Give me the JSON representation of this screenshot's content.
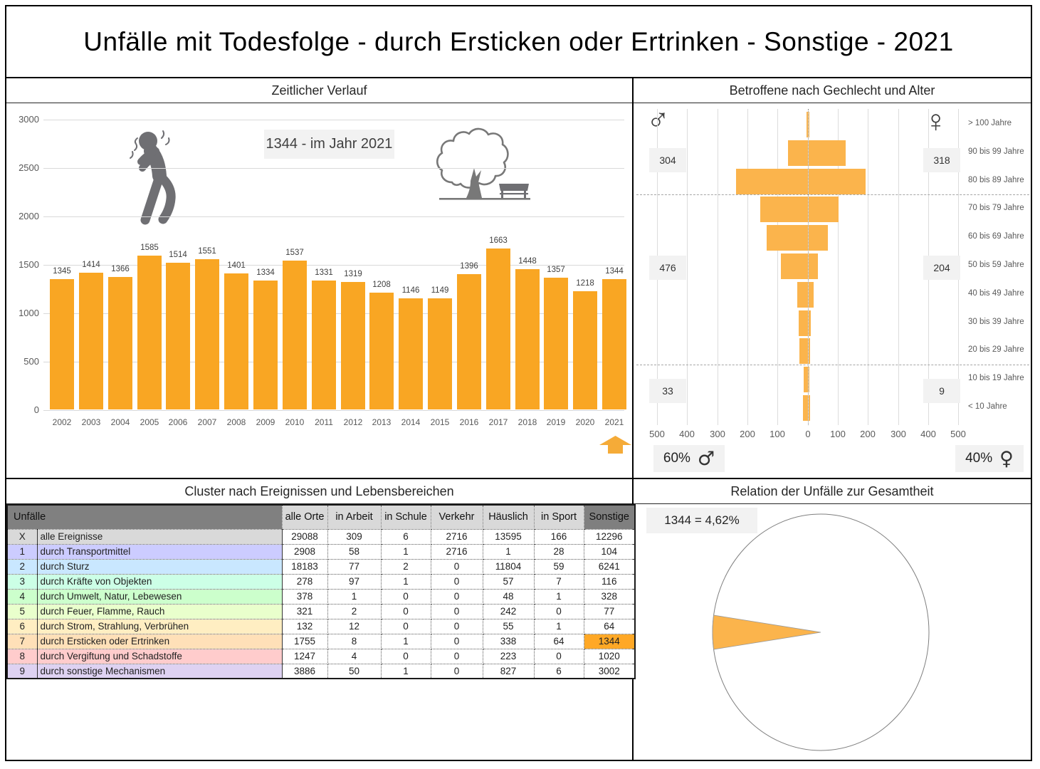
{
  "title": "Unfälle mit Todesfolge - durch Ersticken oder Ertrinken - Sonstige - 2021",
  "colors": {
    "bar_orange": "#F9A623",
    "pyramid_orange": "#FBB44C",
    "highlight_orange": "#FFA826",
    "arrow_orange": "#F5AB38",
    "comment_flag_red": "#C00000",
    "gridline_gray": "#D9D9D9",
    "box_gray": "#F2F2F2",
    "header_dark_gray": "#7F7F7F",
    "header_light_gray": "#D9D9D9"
  },
  "chart_data": [
    {
      "type": "bar",
      "title": "Zeitlicher Verlauf",
      "categories": [
        "2002",
        "2003",
        "2004",
        "2005",
        "2006",
        "2007",
        "2008",
        "2009",
        "2010",
        "2011",
        "2012",
        "2013",
        "2014",
        "2015",
        "2016",
        "2017",
        "2018",
        "2019",
        "2020",
        "2021"
      ],
      "values": [
        1345,
        1414,
        1366,
        1585,
        1514,
        1551,
        1401,
        1334,
        1537,
        1331,
        1319,
        1208,
        1146,
        1149,
        1396,
        1663,
        1448,
        1357,
        1218,
        1344
      ],
      "yticks": [
        3000,
        2500,
        2000,
        1500,
        1000,
        500,
        0
      ],
      "ylim": [
        0,
        3000
      ],
      "annotation": "1344 - im Jahr 2021",
      "highlighted_year": "2021"
    },
    {
      "type": "bar",
      "variant": "population_pyramid",
      "title": "Betroffene nach Gechlecht und Alter",
      "categories": [
        "> 100 Jahre",
        "90 bis 99 Jahre",
        "80 bis 89 Jahre",
        "70 bis 79 Jahre",
        "60 bis 69 Jahre",
        "50 bis 59 Jahre",
        "40 bis 49 Jahre",
        "30 bis 39 Jahre",
        "20 bis 29 Jahre",
        "10 bis 19 Jahre",
        "< 10 Jahre"
      ],
      "series": [
        {
          "name": "männlich",
          "symbol": "♂",
          "pct": "60%",
          "estimated": true,
          "values": [
            5,
            66,
            239,
            158,
            137,
            90,
            35,
            31,
            29,
            15,
            17
          ]
        },
        {
          "name": "weiblich",
          "symbol": "♀",
          "pct": "40%",
          "estimated": true,
          "values": [
            2,
            123,
            189,
            99,
            63,
            30,
            16,
            8,
            5,
            2,
            4
          ]
        }
      ],
      "band_totals": {
        "male": [
          "304",
          "476",
          "33"
        ],
        "female": [
          "318",
          "204",
          "9"
        ]
      },
      "axis_ticks": [
        "500",
        "400",
        "300",
        "200",
        "100",
        "0",
        "100",
        "200",
        "300",
        "400",
        "500"
      ],
      "xlim_each_side": 500
    },
    {
      "type": "table",
      "title": "Cluster nach Ereignissen und Lebensbereichen",
      "corner": "Unfälle",
      "columns": [
        "alle Orte",
        "in Arbeit",
        "in Schule",
        "Verkehr",
        "Häuslich",
        "in Sport",
        "Sonstige"
      ],
      "rows": [
        {
          "id": "X",
          "label": "alle Ereignisse",
          "values": [
            29088,
            309,
            6,
            2716,
            13595,
            166,
            12296
          ],
          "color": "#D9D9D9"
        },
        {
          "id": "1",
          "label": "durch Transportmittel",
          "values": [
            2908,
            58,
            1,
            2716,
            1,
            28,
            104
          ],
          "color": "#CCCCFF"
        },
        {
          "id": "2",
          "label": "durch Sturz",
          "values": [
            18183,
            77,
            2,
            0,
            11804,
            59,
            6241
          ],
          "color": "#C9E7FF"
        },
        {
          "id": "3",
          "label": "durch Kräfte von Objekten",
          "values": [
            278,
            97,
            1,
            0,
            57,
            7,
            116
          ],
          "color": "#CCFFE6"
        },
        {
          "id": "4",
          "label": "durch Umwelt, Natur, Lebewesen",
          "values": [
            378,
            1,
            0,
            0,
            48,
            1,
            328
          ],
          "color": "#CCFFCC"
        },
        {
          "id": "5",
          "label": "durch Feuer, Flamme, Rauch",
          "values": [
            321,
            2,
            0,
            0,
            242,
            0,
            77
          ],
          "color": "#E9FFCC"
        },
        {
          "id": "6",
          "label": "durch Strom, Strahlung, Verbrühen",
          "values": [
            132,
            12,
            0,
            0,
            55,
            1,
            64
          ],
          "color": "#FFEEC2"
        },
        {
          "id": "7",
          "label": "durch Ersticken oder Ertrinken",
          "values": [
            1755,
            8,
            1,
            0,
            338,
            64,
            1344
          ],
          "color": "#FFE0B8",
          "highlight_col": 6
        },
        {
          "id": "8",
          "label": "durch Vergiftung und Schadstoffe",
          "values": [
            1247,
            4,
            0,
            0,
            223,
            0,
            1020
          ],
          "color": "#FFCCCC"
        },
        {
          "id": "9",
          "label": "durch sonstige Mechanismen",
          "values": [
            3886,
            50,
            1,
            0,
            827,
            6,
            3002
          ],
          "color": "#DED2F2"
        }
      ]
    },
    {
      "type": "pie",
      "title": "Relation der Unfälle zur Gesamtheit",
      "label": "1344 =  4,62%",
      "slice_pct": 4.62,
      "values": [
        4.62,
        95.38
      ]
    }
  ]
}
